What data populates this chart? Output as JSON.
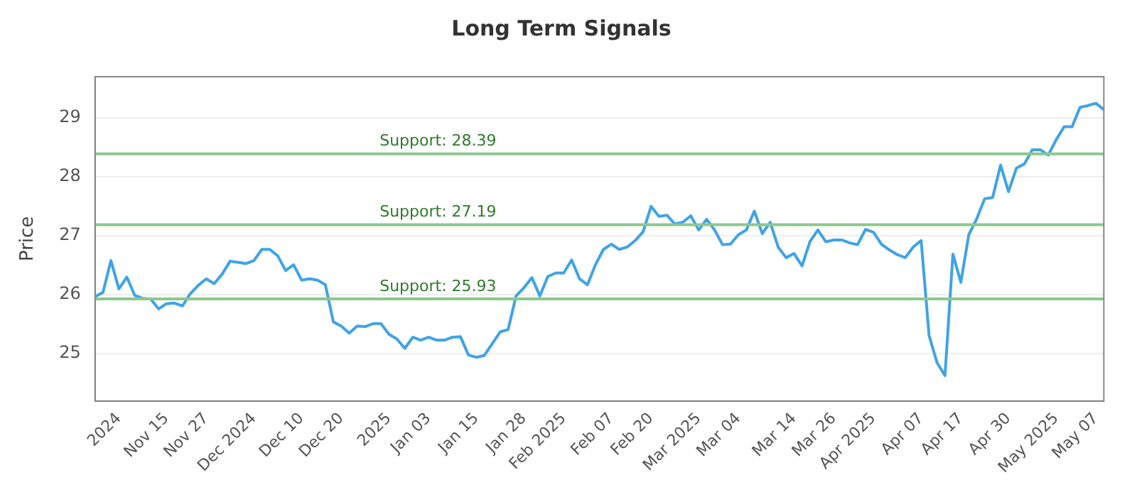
{
  "chart_data": {
    "type": "line",
    "title": "Long Term Signals",
    "ylabel": "Price",
    "categories": [
      null,
      null,
      null,
      "2024",
      null,
      null,
      null,
      null,
      null,
      "Nov 15",
      null,
      null,
      null,
      null,
      "Nov 27",
      null,
      null,
      null,
      null,
      null,
      "Dec 2024",
      null,
      null,
      null,
      null,
      null,
      "Dec 10",
      null,
      null,
      null,
      null,
      "Dec 20",
      null,
      null,
      null,
      null,
      null,
      "2025",
      null,
      null,
      null,
      null,
      "Jan 03",
      null,
      null,
      null,
      null,
      null,
      "Jan 15",
      null,
      null,
      null,
      null,
      null,
      "Jan 28",
      null,
      null,
      null,
      null,
      "Feb 2025",
      null,
      null,
      null,
      null,
      null,
      "Feb 07",
      null,
      null,
      null,
      null,
      "Feb 20",
      null,
      null,
      null,
      null,
      null,
      "Mar 2025",
      null,
      null,
      null,
      null,
      "Mar 04",
      null,
      null,
      null,
      null,
      null,
      null,
      "Mar 14",
      null,
      null,
      null,
      null,
      "Mar 26",
      null,
      null,
      null,
      null,
      "Apr 2025",
      null,
      null,
      null,
      null,
      null,
      "Apr 07",
      null,
      null,
      null,
      null,
      "Apr 17",
      null,
      null,
      null,
      null,
      null,
      "Apr 30",
      null,
      null,
      null,
      null,
      null,
      "May 2025",
      null,
      null,
      null,
      null,
      "May 07",
      null
    ],
    "series": [
      {
        "color": "#3fa3e8",
        "values": [
          25.97,
          26.04,
          26.58,
          26.1,
          26.3,
          25.99,
          25.94,
          25.93,
          25.76,
          25.85,
          25.86,
          25.81,
          26.02,
          26.16,
          26.27,
          26.19,
          26.35,
          26.57,
          26.55,
          26.53,
          26.58,
          26.77,
          26.77,
          26.66,
          26.41,
          26.51,
          26.25,
          26.27,
          26.25,
          26.17,
          25.54,
          25.47,
          25.35,
          25.47,
          25.46,
          25.51,
          25.51,
          25.33,
          25.25,
          25.09,
          25.28,
          25.23,
          25.28,
          25.23,
          25.23,
          25.28,
          25.29,
          24.98,
          24.94,
          24.97,
          25.17,
          25.37,
          25.41,
          25.98,
          26.12,
          26.29,
          25.98,
          26.31,
          26.37,
          26.37,
          26.59,
          26.27,
          26.17,
          26.51,
          26.77,
          26.86,
          26.77,
          26.81,
          26.92,
          27.07,
          27.5,
          27.33,
          27.35,
          27.2,
          27.23,
          27.34,
          27.1,
          27.28,
          27.1,
          26.85,
          26.86,
          27.02,
          27.1,
          27.42,
          27.04,
          27.23,
          26.81,
          26.63,
          26.7,
          26.49,
          26.9,
          27.1,
          26.9,
          26.93,
          26.93,
          26.88,
          26.85,
          27.11,
          27.06,
          26.86,
          26.76,
          26.68,
          26.63,
          26.81,
          26.92,
          25.31,
          24.85,
          24.63,
          26.69,
          26.21,
          27.02,
          27.29,
          27.63,
          27.65,
          28.2,
          27.75,
          28.15,
          28.22,
          28.46,
          28.46,
          28.37,
          28.63,
          28.85,
          28.85,
          29.18,
          29.21,
          29.25,
          29.14
        ]
      }
    ],
    "ylim": [
      24.2,
      29.7
    ],
    "yticks": [
      25,
      26,
      27,
      28,
      29
    ],
    "grid": "y",
    "legend": false,
    "marker": "none",
    "line_style": "solid",
    "ref_lines": [
      {
        "axis": "y",
        "value": 28.39,
        "label": "Support: 28.39",
        "color": "#8cc88c"
      },
      {
        "axis": "y",
        "value": 27.19,
        "label": "Support: 27.19",
        "color": "#8cc88c"
      },
      {
        "axis": "y",
        "value": 25.93,
        "label": "Support: 25.93",
        "color": "#8cc88c"
      }
    ]
  }
}
